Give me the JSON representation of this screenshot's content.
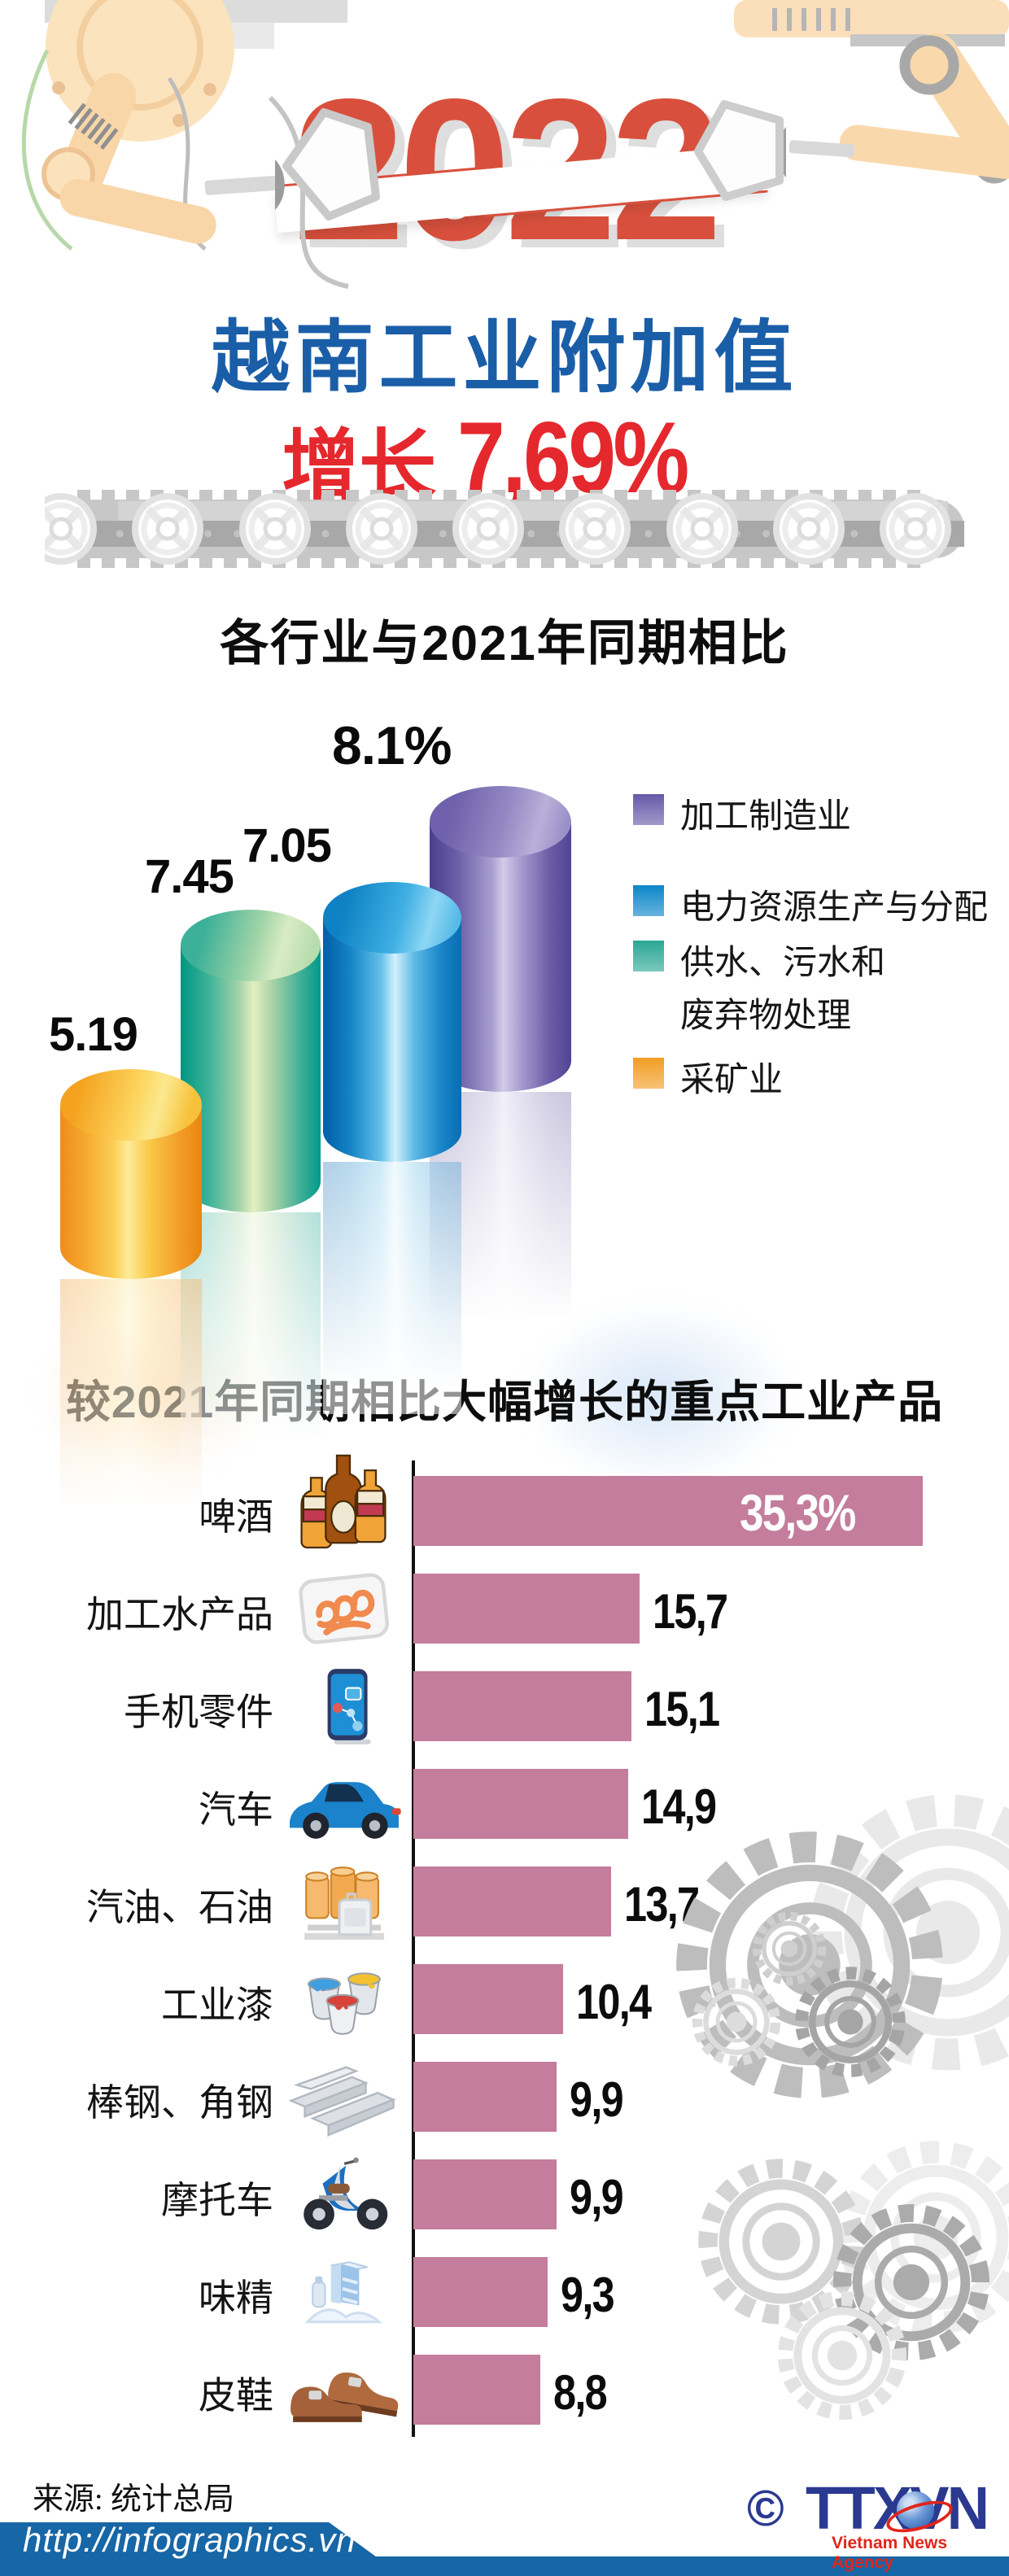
{
  "page": {
    "year": "2022",
    "main_title": "越南工业附加值",
    "growth_label": "增长",
    "growth_value": "7,69%"
  },
  "chart_data": [
    {
      "type": "bar",
      "style": "3d-cylinders",
      "title": "各行业与2021年同期相比",
      "unit": "%",
      "ylim": [
        0,
        8.5
      ],
      "series": [
        {
          "name": "采矿业",
          "value": 5.19,
          "label": "5.19",
          "color": "#f29e23"
        },
        {
          "name": "供水、污水和废弃物处理",
          "value": 7.45,
          "label": "7.45",
          "color": "#2aa795"
        },
        {
          "name": "电力资源生产与分配",
          "value": 7.05,
          "label": "7.05",
          "color": "#0b86c9"
        },
        {
          "name": "加工制造业",
          "value": 8.1,
          "label": "8.1%",
          "color": "#675aa8"
        }
      ],
      "legend": [
        {
          "lines": [
            "加工制造业"
          ],
          "color": "#675aa8"
        },
        {
          "lines": [
            "电力资源生产与分配"
          ],
          "color": "#0b86c9"
        },
        {
          "lines": [
            "供水、污水和",
            "废弃物处理"
          ],
          "color": "#2aa795"
        },
        {
          "lines": [
            "采矿业"
          ],
          "color": "#f29e23"
        }
      ],
      "legend_position": "right"
    },
    {
      "type": "bar",
      "orientation": "horizontal",
      "title": "较2021年同期相比大幅增长的重点工业产品",
      "xlim": [
        0,
        38
      ],
      "bar_color": "#c47d9c",
      "rows": [
        {
          "label": "啤酒",
          "icon": "beer-bottles-icon",
          "value": 35.3,
          "value_label": "35,3%"
        },
        {
          "label": "加工水产品",
          "icon": "packed-shrimp-icon",
          "value": 15.7,
          "value_label": "15,7"
        },
        {
          "label": "手机零件",
          "icon": "smartphone-icon",
          "value": 15.1,
          "value_label": "15,1"
        },
        {
          "label": "汽车",
          "icon": "car-icon",
          "value": 14.9,
          "value_label": "14,9"
        },
        {
          "label": "汽油、石油",
          "icon": "oil-barrels-icon",
          "value": 13.7,
          "value_label": "13,7"
        },
        {
          "label": "工业漆",
          "icon": "paint-buckets-icon",
          "value": 10.4,
          "value_label": "10,4"
        },
        {
          "label": "棒钢、角钢",
          "icon": "steel-profiles-icon",
          "value": 9.9,
          "value_label": "9,9"
        },
        {
          "label": "摩托车",
          "icon": "moped-icon",
          "value": 9.9,
          "value_label": "9,9"
        },
        {
          "label": "味精",
          "icon": "msg-carton-icon",
          "value": 9.3,
          "value_label": "9,3"
        },
        {
          "label": "皮鞋",
          "icon": "leather-shoes-icon",
          "value": 8.8,
          "value_label": "8,8"
        }
      ]
    }
  ],
  "footer": {
    "source": "来源: 统计总局",
    "url": "http://infographics.vn",
    "copyright": "©",
    "agency": "TTXVN",
    "agency_tagline": "Vietnam News Agency"
  }
}
